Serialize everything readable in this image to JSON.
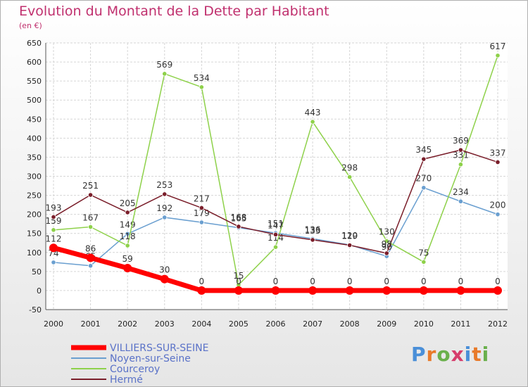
{
  "chart_data": {
    "type": "line",
    "title": "Evolution du Montant de la Dette par Habitant",
    "subtitle": "(en €)",
    "categories": [
      "2000",
      "2001",
      "2002",
      "2003",
      "2004",
      "2005",
      "2006",
      "2007",
      "2008",
      "2009",
      "2010",
      "2011",
      "2012"
    ],
    "ylim": [
      -50,
      650
    ],
    "yticks": [
      -50,
      0,
      50,
      100,
      150,
      200,
      250,
      300,
      350,
      400,
      450,
      500,
      550,
      600,
      650
    ],
    "grid": true,
    "legend": "bottom-left",
    "series": [
      {
        "name": "VILLIERS-SUR-SEINE",
        "color": "#ff0000",
        "values": [
          112,
          86,
          59,
          30,
          0,
          0,
          0,
          0,
          0,
          0,
          0,
          0,
          0
        ]
      },
      {
        "name": "Noyen-sur-Seine",
        "color": "#6a9fd0",
        "values": [
          74,
          65,
          149,
          192,
          179,
          165,
          151,
          136,
          120,
          90,
          270,
          234,
          200
        ]
      },
      {
        "name": "Courceroy",
        "color": "#8ed14a",
        "values": [
          159,
          167,
          118,
          569,
          534,
          15,
          114,
          443,
          298,
          130,
          75,
          331,
          617
        ]
      },
      {
        "name": "Hermé",
        "color": "#7a1e2a",
        "values": [
          193,
          251,
          205,
          253,
          217,
          168,
          147,
          133,
          119,
          98,
          345,
          369,
          337
        ]
      }
    ]
  },
  "brand": {
    "text": "Proxiti"
  }
}
